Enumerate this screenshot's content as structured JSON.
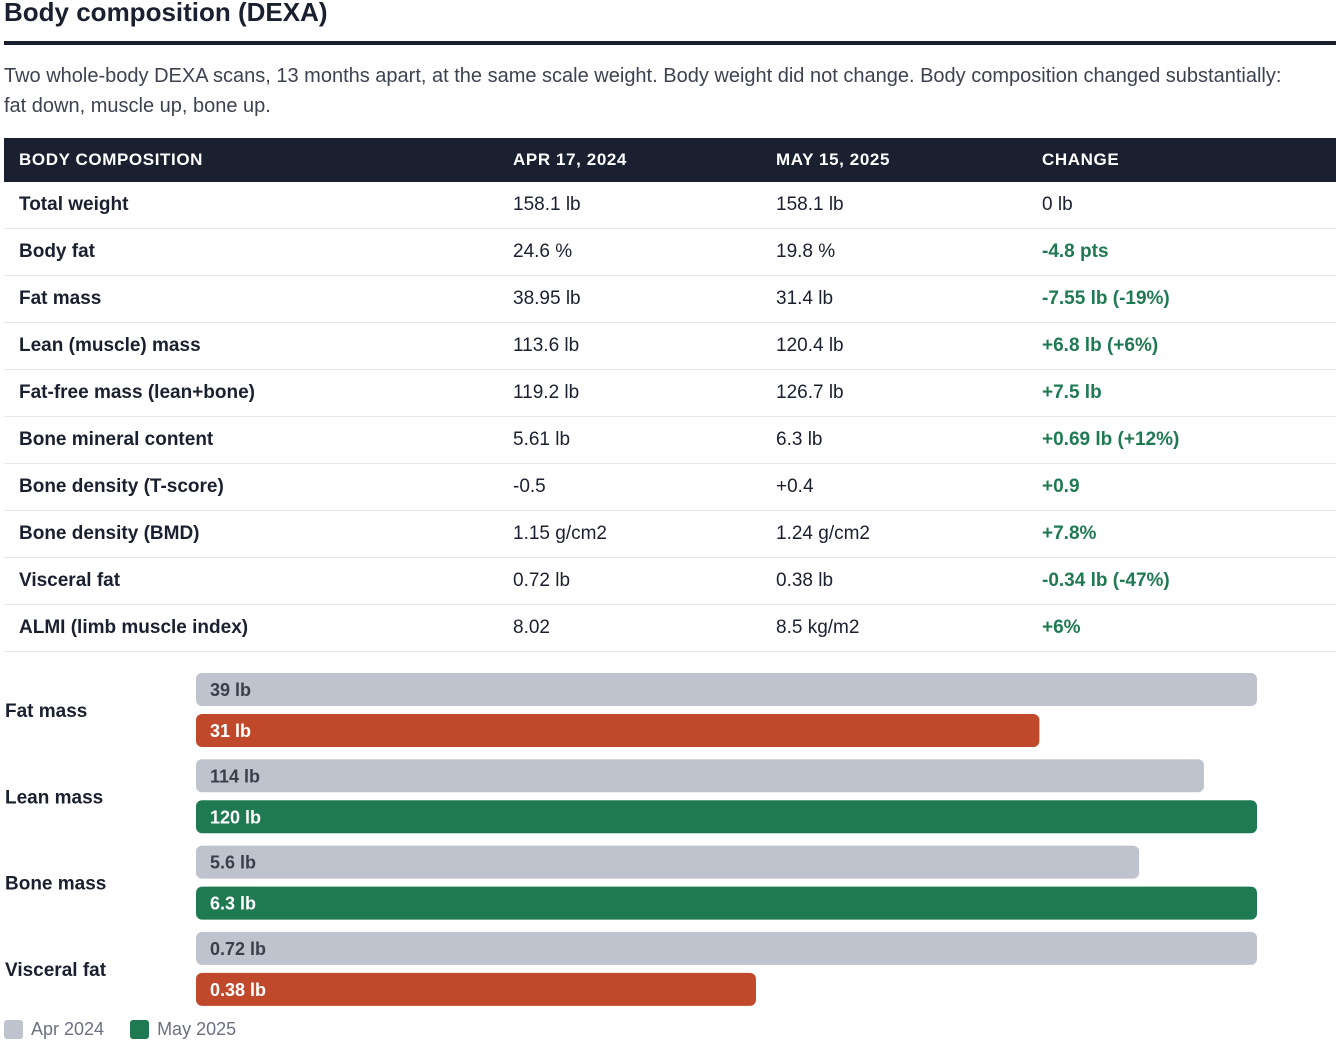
{
  "title": "Body composition (DEXA)",
  "subtitle": "Two whole-body DEXA scans, 13 months apart, at the same scale weight. Body weight did not change. Body composition changed substantially: fat down, muscle up, bone up.",
  "table": {
    "headers": [
      "BODY COMPOSITION",
      "APR 17, 2024",
      "MAY 15, 2025",
      "CHANGE"
    ],
    "rows": [
      {
        "metric": "Total weight",
        "apr": "158.1 lb",
        "may": "158.1 lb",
        "change": "0 lb",
        "highlight": false
      },
      {
        "metric": "Body fat",
        "apr": "24.6 %",
        "may": "19.8 %",
        "change": "-4.8 pts",
        "highlight": true
      },
      {
        "metric": "Fat mass",
        "apr": "38.95 lb",
        "may": "31.4 lb",
        "change": "-7.55 lb (-19%)",
        "highlight": true
      },
      {
        "metric": "Lean (muscle) mass",
        "apr": "113.6 lb",
        "may": "120.4 lb",
        "change": "+6.8 lb (+6%)",
        "highlight": true
      },
      {
        "metric": "Fat-free mass (lean+bone)",
        "apr": "119.2 lb",
        "may": "126.7 lb",
        "change": "+7.5 lb",
        "highlight": true
      },
      {
        "metric": "Bone mineral content",
        "apr": "5.61 lb",
        "may": "6.3 lb",
        "change": "+0.69 lb (+12%)",
        "highlight": true
      },
      {
        "metric": "Bone density (T-score)",
        "apr": "-0.5",
        "may": "+0.4",
        "change": "+0.9",
        "highlight": true
      },
      {
        "metric": "Bone density (BMD)",
        "apr": "1.15 g/cm2",
        "may": "1.24 g/cm2",
        "change": "+7.8%",
        "highlight": true
      },
      {
        "metric": "Visceral fat",
        "apr": "0.72 lb",
        "may": "0.38 lb",
        "change": "-0.34 lb (-47%)",
        "highlight": true
      },
      {
        "metric": "ALMI (limb muscle index)",
        "apr": "8.02",
        "may": "8.5 kg/m2",
        "change": "+6%",
        "highlight": true
      }
    ]
  },
  "colors": {
    "header_bg": "#1b2031",
    "baseline": "#bec3cd",
    "improved": "#1f7a52",
    "decreased": "#c0492c",
    "change_text": "#1f7a52"
  },
  "chart_data": {
    "type": "bar",
    "orientation": "horizontal",
    "categories": [
      "Fat mass",
      "Lean mass",
      "Bone mass",
      "Visceral fat"
    ],
    "series": [
      {
        "name": "Apr 2024",
        "values": [
          39,
          114,
          5.6,
          0.72
        ],
        "labels": [
          "39 lb",
          "114 lb",
          "5.6 lb",
          "0.72 lb"
        ]
      },
      {
        "name": "May 2025",
        "values": [
          31,
          120,
          6.3,
          0.38
        ],
        "labels": [
          "31 lb",
          "120 lb",
          "6.3 lb",
          "0.38 lb"
        ],
        "bar_colors": [
          "#c0492c",
          "#1f7a52",
          "#1f7a52",
          "#c0492c"
        ]
      }
    ],
    "per_category_scale": true,
    "legend": [
      {
        "label": "Apr 2024",
        "color": "#bec3cd"
      },
      {
        "label": "May 2025",
        "color": "#1f7a52"
      }
    ],
    "legend_position": "bottom-left",
    "grid": false
  }
}
